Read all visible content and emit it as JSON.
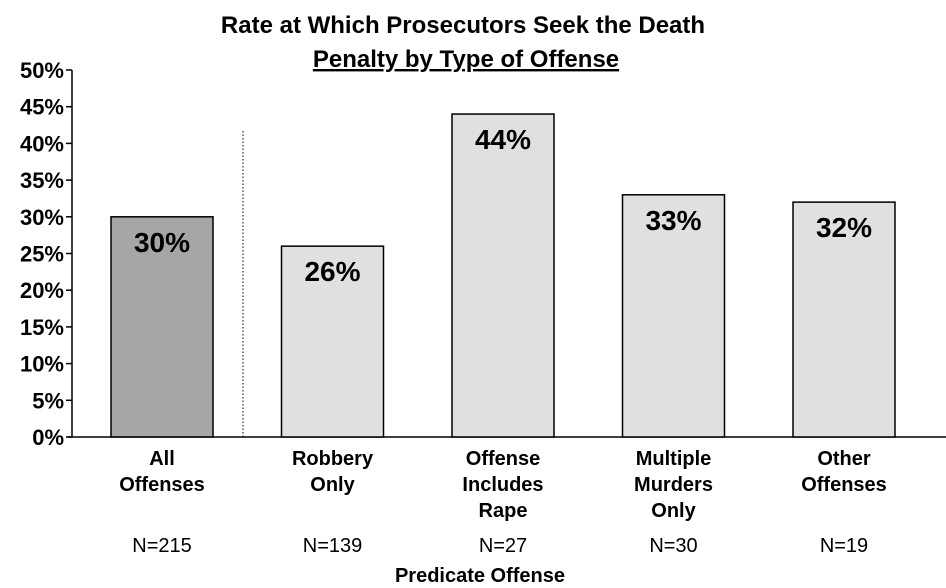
{
  "chart_data": {
    "type": "bar",
    "title_line1": "Rate at Which Prosecutors Seek the Death",
    "title_line2": "Penalty by Type of Offense",
    "xlabel": "Predicate Offense",
    "ylabel": "",
    "ylim": [
      0,
      50
    ],
    "yticks": [
      "0%",
      "5%",
      "10%",
      "15%",
      "20%",
      "25%",
      "30%",
      "35%",
      "40%",
      "45%",
      "50%"
    ],
    "categories": [
      [
        "All",
        "Offenses"
      ],
      [
        "Robbery",
        "Only"
      ],
      [
        "Offense",
        "Includes",
        "Rape"
      ],
      [
        "Multiple",
        "Murders",
        "Only"
      ],
      [
        "Other",
        "Offenses"
      ]
    ],
    "values": [
      30,
      26,
      44,
      33,
      32
    ],
    "value_labels": [
      "30%",
      "26%",
      "44%",
      "33%",
      "32%"
    ],
    "n_labels": [
      "N=215",
      "N=139",
      "N=27",
      "N=30",
      "N=19"
    ],
    "colors": {
      "highlight": "#a6a6a6",
      "bar": "#e0e0e0",
      "outline": "#000000"
    },
    "grid": false,
    "legend": "none"
  }
}
